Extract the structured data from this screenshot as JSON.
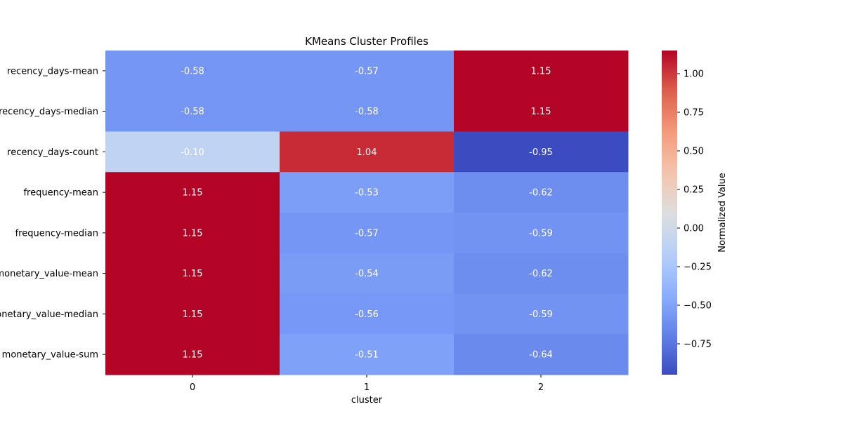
{
  "chart_data": {
    "type": "heatmap",
    "title": "KMeans Cluster Profiles",
    "xlabel": "cluster",
    "ylabel": "",
    "x_categories": [
      "0",
      "1",
      "2"
    ],
    "y_categories": [
      "recency_days-mean",
      "recency_days-median",
      "recency_days-count",
      "frequency-mean",
      "frequency-median",
      "monetary_value-mean",
      "monetary_value-median",
      "monetary_value-sum"
    ],
    "values": [
      [
        -0.58,
        -0.57,
        1.15
      ],
      [
        -0.58,
        -0.58,
        1.15
      ],
      [
        -0.1,
        1.04,
        -0.95
      ],
      [
        1.15,
        -0.53,
        -0.62
      ],
      [
        1.15,
        -0.57,
        -0.59
      ],
      [
        1.15,
        -0.54,
        -0.62
      ],
      [
        1.15,
        -0.56,
        -0.59
      ],
      [
        1.15,
        -0.51,
        -0.64
      ]
    ],
    "colormap": "coolwarm",
    "vmin": -0.95,
    "vmax": 1.15,
    "colorbar": {
      "label": "Normalized Value",
      "ticks": [
        1.0,
        0.75,
        0.5,
        0.25,
        0.0,
        -0.25,
        -0.5,
        -0.75
      ],
      "tick_labels": [
        "1.00",
        "0.75",
        "0.50",
        "0.25",
        "0.00",
        "−0.25",
        "−0.50",
        "−0.75"
      ]
    },
    "annotation_format": "0.00",
    "grid": false,
    "legend_placement": "right"
  }
}
